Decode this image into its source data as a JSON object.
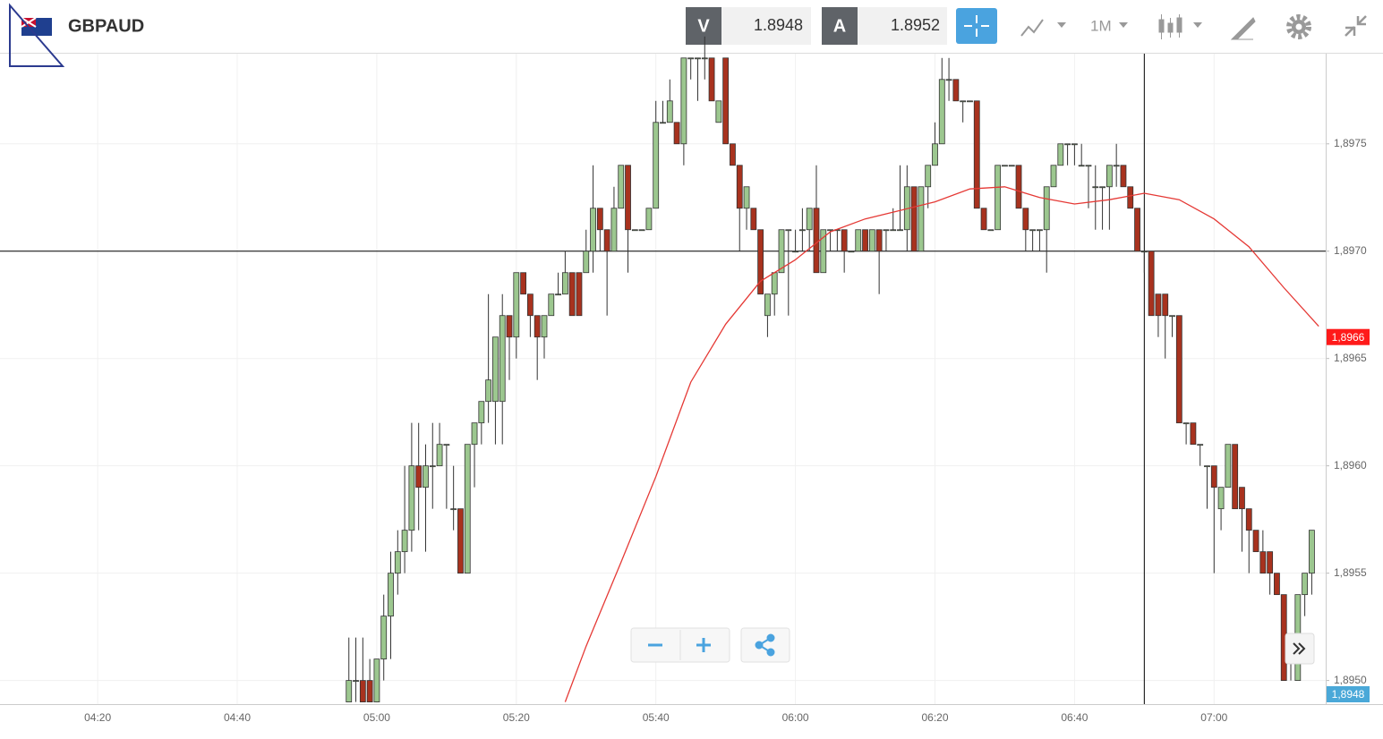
{
  "header": {
    "symbol": "GBPAUD",
    "bid_label": "V",
    "bid": 1.8948,
    "ask_label": "A",
    "ask": 1.8952,
    "timeframe": "1M"
  },
  "chart_data": {
    "type": "candlestick",
    "up_color": "#9cc78f",
    "down_color": "#a8321e",
    "xlim": [
      "04:06",
      "07:16"
    ],
    "xticks": [
      "04:20",
      "04:40",
      "05:00",
      "05:20",
      "05:40",
      "06:00",
      "06:20",
      "06:40",
      "07:00"
    ],
    "ylim": [
      1.89489,
      1.89792
    ],
    "yticks": [
      {
        "value": 1.895,
        "label": "1,8950"
      },
      {
        "value": 1.8955,
        "label": "1,8955"
      },
      {
        "value": 1.896,
        "label": "1,8960"
      },
      {
        "value": 1.8965,
        "label": "1,8965"
      },
      {
        "value": 1.897,
        "label": "1,8970"
      },
      {
        "value": 1.8975,
        "label": "1,8975"
      }
    ],
    "grid": true,
    "x": [
      "04:56",
      "04:57",
      "04:58",
      "04:59",
      "05:00",
      "05:01",
      "05:02",
      "05:03",
      "05:04",
      "05:05",
      "05:06",
      "05:07",
      "05:08",
      "05:09",
      "05:10",
      "05:11",
      "05:12",
      "05:13",
      "05:14",
      "05:15",
      "05:16",
      "05:17",
      "05:18",
      "05:19",
      "05:20",
      "05:21",
      "05:22",
      "05:23",
      "05:24",
      "05:25",
      "05:26",
      "05:27",
      "05:28",
      "05:29",
      "05:30",
      "05:31",
      "05:32",
      "05:33",
      "05:34",
      "05:35",
      "05:36",
      "05:37",
      "05:38",
      "05:39",
      "05:40",
      "05:41",
      "05:42",
      "05:43",
      "05:44",
      "05:45",
      "05:46",
      "05:47",
      "05:48",
      "05:49",
      "05:50",
      "05:51",
      "05:52",
      "05:53",
      "05:54",
      "05:55",
      "05:56",
      "05:57",
      "05:58",
      "05:59",
      "06:00",
      "06:01",
      "06:02",
      "06:03",
      "06:04",
      "06:05",
      "06:06",
      "06:07",
      "06:08",
      "06:09",
      "06:10",
      "06:11",
      "06:12",
      "06:13",
      "06:14",
      "06:15",
      "06:16",
      "06:17",
      "06:18",
      "06:19",
      "06:20",
      "06:21",
      "06:22",
      "06:23",
      "06:24",
      "06:25",
      "06:26",
      "06:27",
      "06:28",
      "06:29",
      "06:30",
      "06:31",
      "06:32",
      "06:33",
      "06:34",
      "06:35",
      "06:36",
      "06:37",
      "06:38",
      "06:39",
      "06:40",
      "06:41",
      "06:42",
      "06:43",
      "06:44",
      "06:45",
      "06:46",
      "06:47",
      "06:48",
      "06:49",
      "06:50",
      "06:51",
      "06:52",
      "06:53",
      "06:54",
      "06:55",
      "06:56",
      "06:57",
      "06:58",
      "06:59",
      "07:00",
      "07:01",
      "07:02",
      "07:03",
      "07:04",
      "07:05",
      "07:06",
      "07:07",
      "07:08",
      "07:09",
      "07:10",
      "07:11",
      "07:12",
      "07:13",
      "07:14"
    ],
    "open": [
      1.8949,
      1.895,
      1.895,
      1.895,
      1.8949,
      1.8951,
      1.8953,
      1.8955,
      1.8956,
      1.8957,
      1.896,
      1.8959,
      1.896,
      1.896,
      1.8961,
      1.8958,
      1.8958,
      1.8955,
      1.8961,
      1.8962,
      1.8963,
      1.8963,
      1.8963,
      1.8967,
      1.8966,
      1.8969,
      1.8968,
      1.8967,
      1.8966,
      1.8967,
      1.8968,
      1.8968,
      1.8969,
      1.8969,
      1.8969,
      1.897,
      1.8972,
      1.8971,
      1.897,
      1.8972,
      1.8974,
      1.8971,
      1.8971,
      1.8971,
      1.8972,
      1.8976,
      1.8976,
      1.8976,
      1.8975,
      1.8979,
      1.8979,
      1.8979,
      1.8979,
      1.8976,
      1.8979,
      1.8975,
      1.8974,
      1.8972,
      1.8972,
      1.8971,
      1.8967,
      1.8968,
      1.8969,
      1.8971,
      1.897,
      1.8971,
      1.8971,
      1.8972,
      1.8969,
      1.8971,
      1.8971,
      1.8971,
      1.897,
      1.897,
      1.8971,
      1.897,
      1.8971,
      1.8971,
      1.8971,
      1.8971,
      1.8971,
      1.8973,
      1.897,
      1.8973,
      1.8974,
      1.8975,
      1.8978,
      1.8978,
      1.8977,
      1.8977,
      1.8977,
      1.8972,
      1.8971,
      1.8971,
      1.8974,
      1.8974,
      1.8974,
      1.8972,
      1.8971,
      1.8971,
      1.8971,
      1.8973,
      1.8974,
      1.8975,
      1.8975,
      1.8974,
      1.8974,
      1.8973,
      1.8973,
      1.8973,
      1.8974,
      1.8974,
      1.8973,
      1.8972,
      1.897,
      1.897,
      1.8968,
      1.8968,
      1.8967,
      1.8967,
      1.8962,
      1.8962,
      1.8961,
      1.896,
      1.896,
      1.8958,
      1.8959,
      1.8961,
      1.8959,
      1.8958,
      1.8957,
      1.8956,
      1.8956,
      1.8955,
      1.8954,
      1.8951,
      1.895,
      1.8954,
      1.8955
    ],
    "high": [
      1.8952,
      1.8952,
      1.8952,
      1.8951,
      1.8951,
      1.8954,
      1.8956,
      1.8957,
      1.896,
      1.8962,
      1.8962,
      1.8961,
      1.8962,
      1.8962,
      1.8961,
      1.896,
      1.8958,
      1.8961,
      1.8962,
      1.8963,
      1.8968,
      1.8966,
      1.8968,
      1.8967,
      1.8969,
      1.8969,
      1.8968,
      1.8967,
      1.8967,
      1.8968,
      1.8969,
      1.897,
      1.8969,
      1.8969,
      1.8971,
      1.8974,
      1.8972,
      1.8971,
      1.8973,
      1.8974,
      1.8974,
      1.8971,
      1.8971,
      1.8972,
      1.8977,
      1.8977,
      1.8978,
      1.8976,
      1.8979,
      1.8979,
      1.8979,
      1.898,
      1.8979,
      1.8977,
      1.8979,
      1.8975,
      1.8974,
      1.8973,
      1.8972,
      1.8971,
      1.8968,
      1.8969,
      1.8971,
      1.8971,
      1.8971,
      1.8972,
      1.8972,
      1.8974,
      1.8971,
      1.8971,
      1.8971,
      1.8971,
      1.897,
      1.8971,
      1.8971,
      1.8971,
      1.8971,
      1.8971,
      1.8972,
      1.8974,
      1.8974,
      1.8973,
      1.8973,
      1.8974,
      1.8976,
      1.8979,
      1.8979,
      1.8978,
      1.8977,
      1.8977,
      1.8977,
      1.8972,
      1.8971,
      1.8974,
      1.8974,
      1.8974,
      1.8974,
      1.8972,
      1.8971,
      1.8971,
      1.8973,
      1.8974,
      1.8975,
      1.8975,
      1.8975,
      1.8975,
      1.8974,
      1.8974,
      1.8973,
      1.8974,
      1.8975,
      1.8974,
      1.8973,
      1.8972,
      1.897,
      1.897,
      1.8968,
      1.8968,
      1.8967,
      1.8967,
      1.8962,
      1.8962,
      1.8961,
      1.896,
      1.896,
      1.8959,
      1.8961,
      1.8961,
      1.8959,
      1.8958,
      1.8957,
      1.8957,
      1.8956,
      1.8955,
      1.8954,
      1.8952,
      1.8954,
      1.8955,
      1.8957
    ],
    "low": [
      1.8949,
      1.8949,
      1.8949,
      1.8949,
      1.8949,
      1.895,
      1.8951,
      1.8954,
      1.8955,
      1.8956,
      1.8957,
      1.8956,
      1.8958,
      1.896,
      1.8958,
      1.8957,
      1.8955,
      1.8955,
      1.8959,
      1.8961,
      1.8962,
      1.8961,
      1.8961,
      1.8964,
      1.8965,
      1.8968,
      1.8966,
      1.8964,
      1.8965,
      1.8967,
      1.8968,
      1.8968,
      1.8967,
      1.8967,
      1.8969,
      1.8969,
      1.897,
      1.8967,
      1.897,
      1.8972,
      1.8969,
      1.8971,
      1.8971,
      1.8971,
      1.8972,
      1.8976,
      1.8976,
      1.8975,
      1.8974,
      1.8978,
      1.8977,
      1.8978,
      1.8977,
      1.8976,
      1.8975,
      1.8974,
      1.897,
      1.8971,
      1.8971,
      1.8968,
      1.8966,
      1.8967,
      1.8969,
      1.8967,
      1.897,
      1.897,
      1.897,
      1.8969,
      1.8969,
      1.897,
      1.897,
      1.8969,
      1.897,
      1.897,
      1.897,
      1.897,
      1.8968,
      1.897,
      1.8971,
      1.8971,
      1.897,
      1.897,
      1.897,
      1.8972,
      1.8974,
      1.8975,
      1.8977,
      1.8977,
      1.8976,
      1.8977,
      1.8972,
      1.8971,
      1.8971,
      1.8971,
      1.8974,
      1.8974,
      1.8972,
      1.897,
      1.897,
      1.897,
      1.8969,
      1.8973,
      1.8974,
      1.8974,
      1.8974,
      1.8974,
      1.8972,
      1.8971,
      1.8971,
      1.8971,
      1.8973,
      1.8973,
      1.8972,
      1.897,
      1.8969,
      1.8967,
      1.8966,
      1.8965,
      1.8966,
      1.8962,
      1.8961,
      1.8961,
      1.896,
      1.8958,
      1.8955,
      1.8957,
      1.8959,
      1.8958,
      1.8956,
      1.8955,
      1.8956,
      1.8955,
      1.8954,
      1.8954,
      1.895,
      1.895,
      1.895,
      1.8953,
      1.8954
    ],
    "close": [
      1.895,
      1.895,
      1.8949,
      1.8949,
      1.8951,
      1.8953,
      1.8955,
      1.8956,
      1.8957,
      1.896,
      1.8959,
      1.896,
      1.896,
      1.8961,
      1.8961,
      1.8958,
      1.8955,
      1.8961,
      1.8962,
      1.8963,
      1.8964,
      1.8966,
      1.8967,
      1.8966,
      1.8969,
      1.8968,
      1.8967,
      1.8966,
      1.8967,
      1.8968,
      1.8968,
      1.8969,
      1.8967,
      1.8967,
      1.897,
      1.8972,
      1.8971,
      1.897,
      1.8972,
      1.8974,
      1.8971,
      1.8971,
      1.8971,
      1.8972,
      1.8976,
      1.8976,
      1.8977,
      1.8975,
      1.8979,
      1.8979,
      1.8979,
      1.8979,
      1.8977,
      1.8977,
      1.8975,
      1.8974,
      1.8972,
      1.8973,
      1.8971,
      1.8968,
      1.8968,
      1.8969,
      1.8971,
      1.8971,
      1.897,
      1.8971,
      1.8972,
      1.8969,
      1.8971,
      1.8971,
      1.8971,
      1.897,
      1.897,
      1.8971,
      1.897,
      1.8971,
      1.897,
      1.8971,
      1.8971,
      1.8971,
      1.8973,
      1.897,
      1.8973,
      1.8974,
      1.8975,
      1.8978,
      1.8978,
      1.8977,
      1.8977,
      1.8977,
      1.8972,
      1.8971,
      1.8971,
      1.8974,
      1.8974,
      1.8974,
      1.8972,
      1.8971,
      1.8971,
      1.8971,
      1.8973,
      1.8974,
      1.8975,
      1.8975,
      1.8975,
      1.8974,
      1.8974,
      1.8973,
      1.8973,
      1.8974,
      1.8974,
      1.8973,
      1.8972,
      1.897,
      1.897,
      1.8967,
      1.8967,
      1.8967,
      1.8967,
      1.8962,
      1.8962,
      1.8961,
      1.8961,
      1.896,
      1.8959,
      1.8959,
      1.8961,
      1.8958,
      1.8958,
      1.8957,
      1.8956,
      1.8955,
      1.8955,
      1.8954,
      1.895,
      1.8952,
      1.8954,
      1.8955,
      1.8957
    ],
    "moving_average": {
      "color": "#e53935",
      "x": [
        "05:27",
        "05:30",
        "05:35",
        "05:40",
        "05:45",
        "05:50",
        "05:55",
        "06:00",
        "06:05",
        "06:10",
        "06:15",
        "06:20",
        "06:25",
        "06:30",
        "06:35",
        "06:40",
        "06:45",
        "06:50",
        "06:55",
        "07:00",
        "07:05",
        "07:10",
        "07:15"
      ],
      "values": [
        1.8949,
        1.89516,
        1.89555,
        1.89595,
        1.89639,
        1.89666,
        1.89686,
        1.89696,
        1.89709,
        1.89715,
        1.89719,
        1.89723,
        1.89729,
        1.8973,
        1.89725,
        1.89722,
        1.89724,
        1.89727,
        1.89724,
        1.89715,
        1.89702,
        1.89683,
        1.89665
      ]
    },
    "crosshair": {
      "value": 1.897,
      "x": "06:50"
    },
    "price_tags": [
      {
        "value": 1.8966,
        "label": "1,8966",
        "color": "#ff1a1a"
      },
      {
        "value": 1.8948,
        "label": "1,8948",
        "color": "#4aa8d8"
      }
    ]
  }
}
